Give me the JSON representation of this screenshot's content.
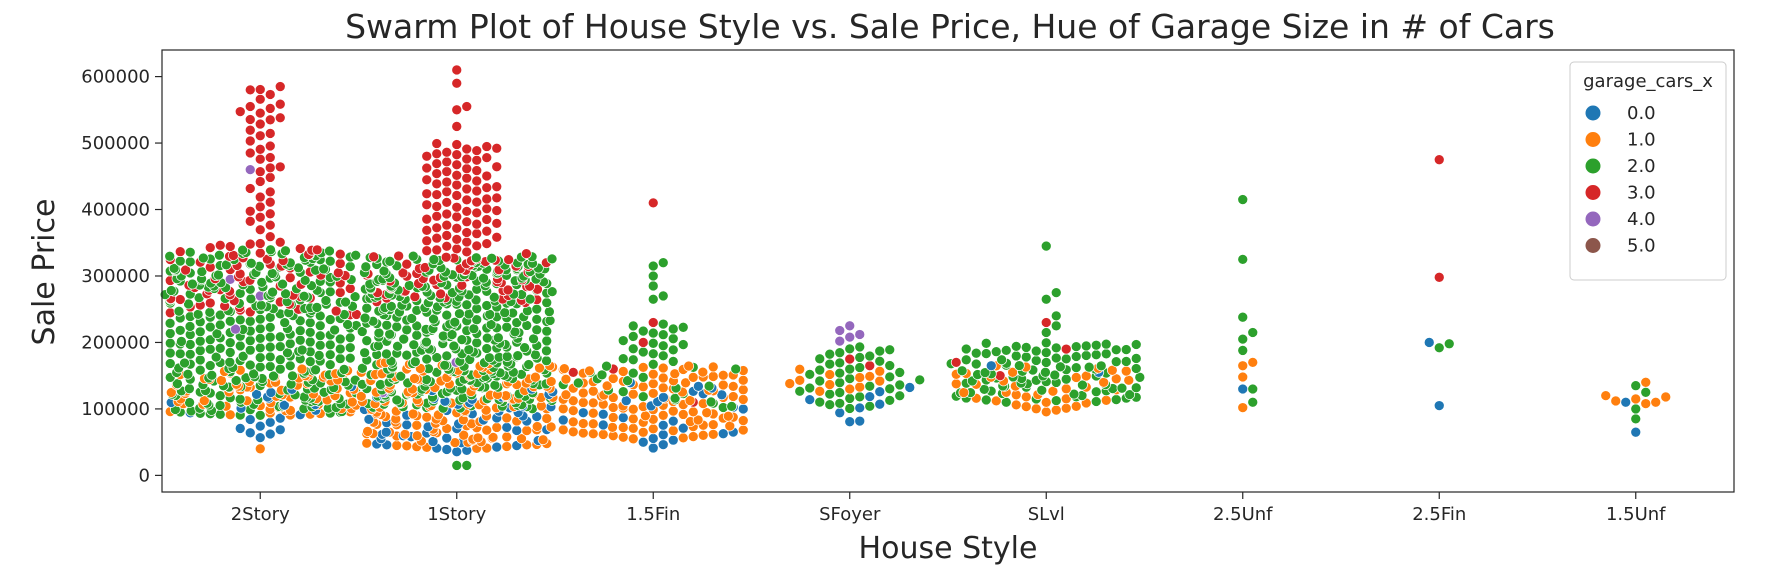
{
  "chart_data": {
    "type": "scatter",
    "subtype": "swarm",
    "title": "Swarm Plot of House Style vs. Sale Price, Hue of Garage Size in # of Cars",
    "xlabel": "House Style",
    "ylabel": "Sale Price",
    "categories": [
      "2Story",
      "1Story",
      "1.5Fin",
      "SFoyer",
      "SLvl",
      "2.5Unf",
      "2.5Fin",
      "1.5Unf"
    ],
    "yticks": [
      "0",
      "100000",
      "200000",
      "300000",
      "400000",
      "500000",
      "600000"
    ],
    "ylim": [
      -25000,
      640000
    ],
    "grid": false,
    "legend": {
      "title": "garage_cars_x",
      "placement": "top-right",
      "entries": [
        {
          "label": "0.0",
          "color": "#1f77b4"
        },
        {
          "label": "1.0",
          "color": "#ff7f0e"
        },
        {
          "label": "2.0",
          "color": "#2ca02c"
        },
        {
          "label": "3.0",
          "color": "#d62728"
        },
        {
          "label": "4.0",
          "color": "#9467bd"
        },
        {
          "label": "5.0",
          "color": "#8c564b"
        }
      ]
    },
    "series": [
      {
        "category": "2Story",
        "garage_cars": 0,
        "ranges": [
          [
            55000,
            135000,
            22
          ]
        ]
      },
      {
        "category": "2Story",
        "garage_cars": 1,
        "ranges": [
          [
            40000,
            40000,
            1
          ],
          [
            90000,
            160000,
            75
          ]
        ]
      },
      {
        "category": "2Story",
        "garage_cars": 2,
        "ranges": [
          [
            90000,
            340000,
            340
          ]
        ]
      },
      {
        "category": "2Story",
        "garage_cars": 3,
        "ranges": [
          [
            240000,
            350000,
            70
          ],
          [
            350000,
            585000,
            35
          ]
        ],
        "values": [
          585000,
          580000,
          555000,
          545000,
          535000,
          485000
        ]
      },
      {
        "category": "2Story",
        "garage_cars": 4,
        "values": [
          460000,
          270000,
          220000,
          295000
        ]
      },
      {
        "category": "1Story",
        "garage_cars": 0,
        "ranges": [
          [
            35000,
            130000,
            55
          ]
        ]
      },
      {
        "category": "1Story",
        "garage_cars": 1,
        "ranges": [
          [
            40000,
            170000,
            160
          ]
        ]
      },
      {
        "category": "1Story",
        "garage_cars": 2,
        "ranges": [
          [
            15000,
            15000,
            2
          ],
          [
            100000,
            330000,
            400
          ]
        ]
      },
      {
        "category": "1Story",
        "garage_cars": 3,
        "ranges": [
          [
            260000,
            330000,
            60
          ],
          [
            330000,
            500000,
            80
          ]
        ],
        "values": [
          610000,
          590000,
          555000,
          550000,
          525000
        ]
      },
      {
        "category": "1Story",
        "garage_cars": 4,
        "values": [
          170000,
          125000
        ]
      },
      {
        "category": "1.5Fin",
        "garage_cars": 0,
        "ranges": [
          [
            40000,
            140000,
            28
          ]
        ]
      },
      {
        "category": "1.5Fin",
        "garage_cars": 1,
        "ranges": [
          [
            55000,
            165000,
            115
          ]
        ]
      },
      {
        "category": "1.5Fin",
        "garage_cars": 2,
        "ranges": [
          [
            100000,
            230000,
            45
          ]
        ],
        "values": [
          320000,
          315000,
          300000,
          285000,
          270000,
          265000
        ]
      },
      {
        "category": "1.5Fin",
        "garage_cars": 3,
        "values": [
          410000,
          230000,
          200000,
          160000,
          155000,
          110000
        ]
      },
      {
        "category": "SFoyer",
        "garage_cars": 0,
        "ranges": [
          [
            75000,
            135000,
            9
          ]
        ]
      },
      {
        "category": "SFoyer",
        "garage_cars": 1,
        "ranges": [
          [
            125000,
            160000,
            12
          ]
        ]
      },
      {
        "category": "SFoyer",
        "garage_cars": 2,
        "ranges": [
          [
            100000,
            195000,
            40
          ]
        ]
      },
      {
        "category": "SFoyer",
        "garage_cars": 3,
        "values": [
          175000,
          165000
        ]
      },
      {
        "category": "SFoyer",
        "garage_cars": 4,
        "values": [
          225000,
          218000,
          212000,
          208000,
          202000
        ]
      },
      {
        "category": "SLvl",
        "garage_cars": 0,
        "values": [
          165000,
          155000
        ]
      },
      {
        "category": "SLvl",
        "garage_cars": 1,
        "ranges": [
          [
            95000,
            165000,
            40
          ]
        ]
      },
      {
        "category": "SLvl",
        "garage_cars": 2,
        "ranges": [
          [
            110000,
            200000,
            100
          ]
        ],
        "values": [
          345000,
          275000,
          265000,
          240000,
          225000,
          215000
        ]
      },
      {
        "category": "SLvl",
        "garage_cars": 3,
        "values": [
          230000,
          190000,
          170000,
          150000
        ]
      },
      {
        "category": "2.5Unf",
        "garage_cars": 0,
        "values": [
          130000
        ]
      },
      {
        "category": "2.5Unf",
        "garage_cars": 1,
        "values": [
          170000,
          165000,
          148000,
          102000
        ]
      },
      {
        "category": "2.5Unf",
        "garage_cars": 2,
        "values": [
          415000,
          325000,
          238000,
          215000,
          205000,
          188000,
          130000,
          110000
        ]
      },
      {
        "category": "2.5Fin",
        "garage_cars": 0,
        "values": [
          200000,
          105000
        ]
      },
      {
        "category": "2.5Fin",
        "garage_cars": 2,
        "values": [
          198000,
          192000
        ]
      },
      {
        "category": "2.5Fin",
        "garage_cars": 3,
        "values": [
          475000,
          298000
        ]
      },
      {
        "category": "1.5Unf",
        "garage_cars": 0,
        "values": [
          110000,
          65000
        ]
      },
      {
        "category": "1.5Unf",
        "garage_cars": 1,
        "values": [
          140000,
          120000,
          118000,
          115000,
          112000,
          110000,
          108000
        ]
      },
      {
        "category": "1.5Unf",
        "garage_cars": 2,
        "values": [
          135000,
          125000,
          100000,
          85000
        ]
      }
    ]
  }
}
